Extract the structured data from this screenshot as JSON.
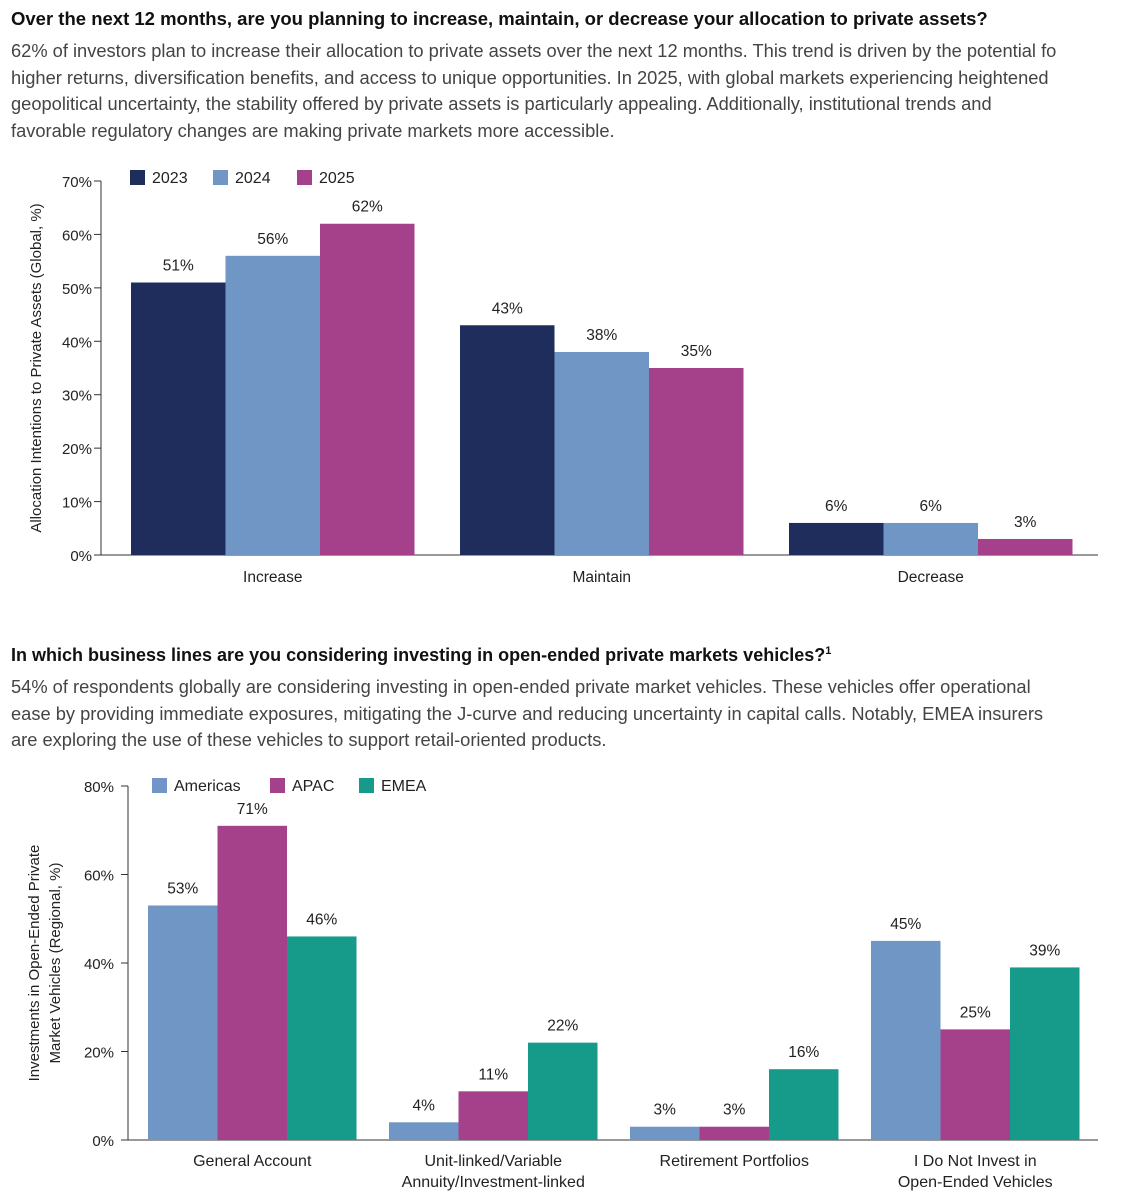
{
  "section1": {
    "heading": "Over the next 12 months, are you planning to increase, maintain, or decrease your allocation to private assets?",
    "paragraph_lines": [
      "62% of investors plan to increase their allocation to private assets over the next 12 months. This trend is driven by the potential fo",
      "higher returns, diversification benefits, and access to unique opportunities. In 2025, with global markets experiencing heightened",
      "geopolitical uncertainty, the stability offered by private assets is particularly appealing. Additionally, institutional trends and",
      "favorable regulatory changes are making private markets more accessible."
    ]
  },
  "section2": {
    "heading": "In which business lines are you considering investing in open-ended private markets vehicles?",
    "heading_sup": "1",
    "paragraph_lines": [
      "54% of respondents globally are considering investing in open-ended private market vehicles. These vehicles offer operational",
      "ease by providing immediate exposures, mitigating the J-curve and reducing uncertainty in capital calls. Notably, EMEA insurers",
      "are exploring the use of these vehicles to support retail-oriented products."
    ]
  },
  "chart_data": [
    {
      "type": "bar",
      "categories": [
        "Increase",
        "Maintain",
        "Decrease"
      ],
      "series": [
        {
          "name": "2023",
          "values": [
            51,
            43,
            6
          ],
          "color": "#1f2d5c"
        },
        {
          "name": "2024",
          "values": [
            56,
            38,
            6
          ],
          "color": "#7096c6"
        },
        {
          "name": "2025",
          "values": [
            62,
            35,
            3
          ],
          "color": "#a5418a"
        }
      ],
      "data_labels": [
        [
          "51%",
          "43%",
          "6%"
        ],
        [
          "56%",
          "38%",
          "6%"
        ],
        [
          "62%",
          "35%",
          "3%"
        ]
      ],
      "ylabel": "Allocation Intentions to Private Assets (Global, %)",
      "ylim": [
        0,
        70
      ],
      "yticks": [
        0,
        10,
        20,
        30,
        40,
        50,
        60,
        70
      ],
      "ytick_labels": [
        "0%",
        "10%",
        "20%",
        "30%",
        "40%",
        "50%",
        "60%",
        "70%"
      ],
      "legend": "top-left",
      "grid": false
    },
    {
      "type": "bar",
      "categories": [
        [
          "General Account"
        ],
        [
          "Unit-linked/Variable",
          "Annuity/Investment-linked"
        ],
        [
          "Retirement Portfolios"
        ],
        [
          "I Do Not Invest in",
          "Open-Ended Vehicles"
        ]
      ],
      "series": [
        {
          "name": "Americas",
          "values": [
            53,
            4,
            3,
            45
          ],
          "color": "#7096c6"
        },
        {
          "name": "APAC",
          "values": [
            71,
            11,
            3,
            25
          ],
          "color": "#a5418a"
        },
        {
          "name": "EMEA",
          "values": [
            46,
            22,
            16,
            39
          ],
          "color": "#169a8a"
        }
      ],
      "data_labels": [
        [
          "53%",
          "4%",
          "3%",
          "45%"
        ],
        [
          "71%",
          "11%",
          "3%",
          "25%"
        ],
        [
          "46%",
          "22%",
          "16%",
          "39%"
        ]
      ],
      "ylabel": [
        "Investments in Open-Ended Private",
        "Market Vehicles (Regional, %)"
      ],
      "ylim": [
        0,
        80
      ],
      "yticks": [
        0,
        20,
        40,
        60,
        80
      ],
      "ytick_labels": [
        "0%",
        "20%",
        "40%",
        "60%",
        "80%"
      ],
      "legend": "top-left",
      "grid": false
    }
  ]
}
